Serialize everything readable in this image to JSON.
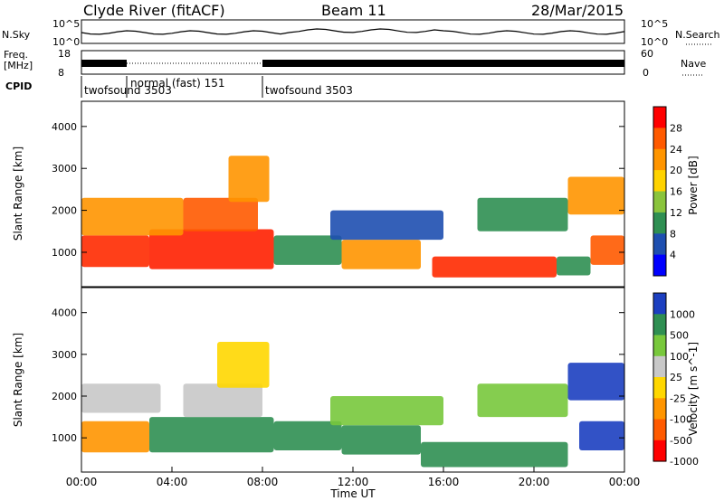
{
  "header": {
    "title": "Clyde River (fitACF)",
    "beam": "Beam 11",
    "date": "28/Mar/2015"
  },
  "status_panels": {
    "nsky_label": "N.Sky",
    "nsky_ticks": [
      "10^5",
      "10^0"
    ],
    "nsearch_label": "N.Search",
    "nsearch_ticks": [
      "10^5",
      "10^0"
    ],
    "freq_label": "Freq.",
    "freq_unit": "[MHz]",
    "freq_ticks": [
      "18",
      "8"
    ],
    "nave_label": "Nave",
    "nave_ticks": [
      "60",
      "0"
    ],
    "cpid_label": "CPID",
    "cpid_segments": [
      {
        "label": "twofsound 3503",
        "start_h": 0,
        "end_h": 2
      },
      {
        "label": "normal (fast) 151",
        "start_h": 2,
        "end_h": 8
      },
      {
        "label": "twofsound 3503",
        "start_h": 8,
        "end_h": 24
      }
    ]
  },
  "chart_data": [
    {
      "type": "heatmap",
      "name": "power",
      "ylabel": "Slant Range [km]",
      "xlim_h": [
        0,
        24
      ],
      "ylim_km": [
        180,
        4600
      ],
      "y_ticks": [
        1000,
        2000,
        3000,
        4000
      ],
      "colorbar": {
        "label": "Power [dB]",
        "ticks": [
          "28",
          "24",
          "20",
          "16",
          "12",
          "8",
          "4"
        ],
        "colors": [
          "#ff0000",
          "#ff5a00",
          "#ff9500",
          "#ffd300",
          "#8ac43c",
          "#2f8f52",
          "#1e4fb0",
          "#0000ff"
        ]
      },
      "regions": [
        {
          "start_h": 0.0,
          "end_h": 3.0,
          "min_km": 650,
          "max_km": 1400,
          "color": "#ff2a00"
        },
        {
          "start_h": 3.0,
          "end_h": 8.5,
          "min_km": 600,
          "max_km": 1550,
          "color": "#ff2000"
        },
        {
          "start_h": 4.5,
          "end_h": 7.8,
          "min_km": 1500,
          "max_km": 2300,
          "color": "#ff5a00"
        },
        {
          "start_h": 6.5,
          "end_h": 8.3,
          "min_km": 2200,
          "max_km": 3300,
          "color": "#ff9500"
        },
        {
          "start_h": 0.0,
          "end_h": 4.5,
          "min_km": 1400,
          "max_km": 2300,
          "color": "#ff9500"
        },
        {
          "start_h": 8.5,
          "end_h": 11.5,
          "min_km": 700,
          "max_km": 1400,
          "color": "#2f8f52"
        },
        {
          "start_h": 11.5,
          "end_h": 15.0,
          "min_km": 600,
          "max_km": 1300,
          "color": "#ff9500"
        },
        {
          "start_h": 15.5,
          "end_h": 21.0,
          "min_km": 400,
          "max_km": 900,
          "color": "#ff2a00"
        },
        {
          "start_h": 21.0,
          "end_h": 22.5,
          "min_km": 450,
          "max_km": 900,
          "color": "#2f8f52"
        },
        {
          "start_h": 11.0,
          "end_h": 16.0,
          "min_km": 1300,
          "max_km": 2000,
          "color": "#1e4fb0"
        },
        {
          "start_h": 21.5,
          "end_h": 24.0,
          "min_km": 1900,
          "max_km": 2800,
          "color": "#ff9500"
        },
        {
          "start_h": 22.5,
          "end_h": 24.0,
          "min_km": 700,
          "max_km": 1400,
          "color": "#ff5a00"
        },
        {
          "start_h": 17.5,
          "end_h": 21.5,
          "min_km": 1500,
          "max_km": 2300,
          "color": "#2f8f52"
        }
      ]
    },
    {
      "type": "heatmap",
      "name": "velocity",
      "ylabel": "Slant Range [km]",
      "xlabel": "Time UT",
      "xlim_h": [
        0,
        24
      ],
      "ylim_km": [
        180,
        4600
      ],
      "y_ticks": [
        1000,
        2000,
        3000,
        4000
      ],
      "x_ticks": [
        "00:00",
        "04:00",
        "08:00",
        "12:00",
        "16:00",
        "20:00",
        "00:00"
      ],
      "colorbar": {
        "label": "Velocity [m s^-1]",
        "ticks": [
          "1000",
          "500",
          "100",
          "25",
          "-25",
          "-100",
          "-500",
          "-1000"
        ],
        "colors": [
          "#1c3fc0",
          "#2f8f52",
          "#78c83c",
          "#c8c8c8",
          "#ffd700",
          "#ff9500",
          "#ff5a00",
          "#ff0000"
        ]
      },
      "regions": [
        {
          "start_h": 0.0,
          "end_h": 3.0,
          "min_km": 650,
          "max_km": 1400,
          "color": "#ff9500"
        },
        {
          "start_h": 0.0,
          "end_h": 3.5,
          "min_km": 1600,
          "max_km": 2300,
          "color": "#c8c8c8"
        },
        {
          "start_h": 3.0,
          "end_h": 8.5,
          "min_km": 650,
          "max_km": 1500,
          "color": "#2f8f52"
        },
        {
          "start_h": 4.5,
          "end_h": 8.0,
          "min_km": 1500,
          "max_km": 2300,
          "color": "#c8c8c8"
        },
        {
          "start_h": 6.0,
          "end_h": 8.3,
          "min_km": 2200,
          "max_km": 3300,
          "color": "#ffd700"
        },
        {
          "start_h": 8.5,
          "end_h": 11.5,
          "min_km": 700,
          "max_km": 1400,
          "color": "#2f8f52"
        },
        {
          "start_h": 11.5,
          "end_h": 15.0,
          "min_km": 600,
          "max_km": 1300,
          "color": "#2f8f52"
        },
        {
          "start_h": 15.0,
          "end_h": 21.5,
          "min_km": 300,
          "max_km": 900,
          "color": "#2f8f52"
        },
        {
          "start_h": 11.0,
          "end_h": 16.0,
          "min_km": 1300,
          "max_km": 2000,
          "color": "#78c83c"
        },
        {
          "start_h": 21.5,
          "end_h": 24.0,
          "min_km": 1900,
          "max_km": 2800,
          "color": "#1c3fc0"
        },
        {
          "start_h": 22.0,
          "end_h": 24.0,
          "min_km": 700,
          "max_km": 1400,
          "color": "#1c3fc0"
        },
        {
          "start_h": 17.5,
          "end_h": 21.5,
          "min_km": 1500,
          "max_km": 2300,
          "color": "#78c83c"
        }
      ]
    }
  ]
}
